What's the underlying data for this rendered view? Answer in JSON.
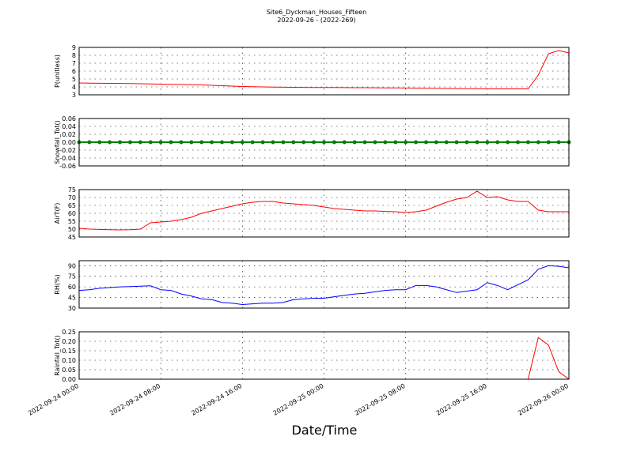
{
  "chart_data": [
    {
      "type": "line",
      "title": "Site6_Dyckman_Houses_Fifteen",
      "subtitle": "2022-09-26 - (2022-269)",
      "ylabel": "P(unitless)",
      "color": "#ff0000",
      "grid": true,
      "x": [
        "2022-09-24 00:00",
        "2022-09-24 01:00",
        "2022-09-24 02:00",
        "2022-09-24 03:00",
        "2022-09-24 04:00",
        "2022-09-24 05:00",
        "2022-09-24 06:00",
        "2022-09-24 07:00",
        "2022-09-24 08:00",
        "2022-09-24 09:00",
        "2022-09-24 10:00",
        "2022-09-24 11:00",
        "2022-09-24 12:00",
        "2022-09-24 13:00",
        "2022-09-24 14:00",
        "2022-09-24 15:00",
        "2022-09-24 16:00",
        "2022-09-24 17:00",
        "2022-09-24 18:00",
        "2022-09-24 19:00",
        "2022-09-24 20:00",
        "2022-09-24 21:00",
        "2022-09-24 22:00",
        "2022-09-24 23:00",
        "2022-09-25 00:00",
        "2022-09-25 01:00",
        "2022-09-25 02:00",
        "2022-09-25 03:00",
        "2022-09-25 04:00",
        "2022-09-25 05:00",
        "2022-09-25 06:00",
        "2022-09-25 07:00",
        "2022-09-25 08:00",
        "2022-09-25 09:00",
        "2022-09-25 10:00",
        "2022-09-25 11:00",
        "2022-09-25 12:00",
        "2022-09-25 13:00",
        "2022-09-25 14:00",
        "2022-09-25 15:00",
        "2022-09-25 16:00",
        "2022-09-25 17:00",
        "2022-09-25 18:00",
        "2022-09-25 19:00",
        "2022-09-25 20:00",
        "2022-09-25 21:00",
        "2022-09-25 22:00",
        "2022-09-25 23:00",
        "2022-09-26 00:00"
      ],
      "values": [
        4.5,
        4.48,
        4.46,
        4.45,
        4.44,
        4.42,
        4.4,
        4.38,
        4.35,
        4.33,
        4.3,
        4.28,
        4.25,
        4.2,
        4.15,
        4.1,
        4.05,
        4.02,
        4.0,
        3.98,
        3.96,
        3.95,
        3.94,
        3.93,
        3.92,
        3.92,
        3.91,
        3.9,
        3.9,
        3.89,
        3.88,
        3.87,
        3.86,
        3.85,
        3.84,
        3.82,
        3.8,
        3.79,
        3.78,
        3.77,
        3.76,
        3.75,
        3.75,
        3.75,
        3.75,
        5.5,
        8.2,
        8.6,
        8.3
      ],
      "xlim": [
        "2022-09-24 00:00",
        "2022-09-26 00:00"
      ],
      "ylim": [
        3,
        9
      ],
      "yticks": [
        3,
        4,
        5,
        6,
        7,
        8,
        9
      ]
    },
    {
      "type": "line",
      "ylabel": "Snowfall_Tot()",
      "color": "#008000",
      "markers": true,
      "grid": true,
      "x": [
        "2022-09-24 00:00",
        "2022-09-24 01:00",
        "2022-09-24 02:00",
        "2022-09-24 03:00",
        "2022-09-24 04:00",
        "2022-09-24 05:00",
        "2022-09-24 06:00",
        "2022-09-24 07:00",
        "2022-09-24 08:00",
        "2022-09-24 09:00",
        "2022-09-24 10:00",
        "2022-09-24 11:00",
        "2022-09-24 12:00",
        "2022-09-24 13:00",
        "2022-09-24 14:00",
        "2022-09-24 15:00",
        "2022-09-24 16:00",
        "2022-09-24 17:00",
        "2022-09-24 18:00",
        "2022-09-24 19:00",
        "2022-09-24 20:00",
        "2022-09-24 21:00",
        "2022-09-24 22:00",
        "2022-09-24 23:00",
        "2022-09-25 00:00",
        "2022-09-25 01:00",
        "2022-09-25 02:00",
        "2022-09-25 03:00",
        "2022-09-25 04:00",
        "2022-09-25 05:00",
        "2022-09-25 06:00",
        "2022-09-25 07:00",
        "2022-09-25 08:00",
        "2022-09-25 09:00",
        "2022-09-25 10:00",
        "2022-09-25 11:00",
        "2022-09-25 12:00",
        "2022-09-25 13:00",
        "2022-09-25 14:00",
        "2022-09-25 15:00",
        "2022-09-25 16:00",
        "2022-09-25 17:00",
        "2022-09-25 18:00",
        "2022-09-25 19:00",
        "2022-09-25 20:00",
        "2022-09-25 21:00",
        "2022-09-25 22:00",
        "2022-09-25 23:00",
        "2022-09-26 00:00"
      ],
      "values": [
        0,
        0,
        0,
        0,
        0,
        0,
        0,
        0,
        0,
        0,
        0,
        0,
        0,
        0,
        0,
        0,
        0,
        0,
        0,
        0,
        0,
        0,
        0,
        0,
        0,
        0,
        0,
        0,
        0,
        0,
        0,
        0,
        0,
        0,
        0,
        0,
        0,
        0,
        0,
        0,
        0,
        0,
        0,
        0,
        0,
        0,
        0,
        0,
        0
      ],
      "xlim": [
        "2022-09-24 00:00",
        "2022-09-26 00:00"
      ],
      "ylim": [
        -0.06,
        0.06
      ],
      "yticks": [
        {
          "value": -0.06,
          "label": "-0.06"
        },
        {
          "value": -0.04,
          "label": "-0.04"
        },
        {
          "value": -0.02,
          "label": "-0.02"
        },
        {
          "value": 0,
          "label": "0.00"
        },
        {
          "value": 0.02,
          "label": "0.02"
        },
        {
          "value": 0.04,
          "label": "0.04"
        },
        {
          "value": 0.06,
          "label": "0.06"
        }
      ]
    },
    {
      "type": "line",
      "ylabel": "AirT(F)",
      "color": "#ff0000",
      "grid": true,
      "x": [
        "2022-09-24 00:00",
        "2022-09-24 01:00",
        "2022-09-24 02:00",
        "2022-09-24 03:00",
        "2022-09-24 04:00",
        "2022-09-24 05:00",
        "2022-09-24 06:00",
        "2022-09-24 07:00",
        "2022-09-24 08:00",
        "2022-09-24 09:00",
        "2022-09-24 10:00",
        "2022-09-24 11:00",
        "2022-09-24 12:00",
        "2022-09-24 13:00",
        "2022-09-24 14:00",
        "2022-09-24 15:00",
        "2022-09-24 16:00",
        "2022-09-24 17:00",
        "2022-09-24 18:00",
        "2022-09-24 19:00",
        "2022-09-24 20:00",
        "2022-09-24 21:00",
        "2022-09-24 22:00",
        "2022-09-24 23:00",
        "2022-09-25 00:00",
        "2022-09-25 01:00",
        "2022-09-25 02:00",
        "2022-09-25 03:00",
        "2022-09-25 04:00",
        "2022-09-25 05:00",
        "2022-09-25 06:00",
        "2022-09-25 07:00",
        "2022-09-25 08:00",
        "2022-09-25 09:00",
        "2022-09-25 10:00",
        "2022-09-25 11:00",
        "2022-09-25 12:00",
        "2022-09-25 13:00",
        "2022-09-25 14:00",
        "2022-09-25 15:00",
        "2022-09-25 16:00",
        "2022-09-25 17:00",
        "2022-09-25 18:00",
        "2022-09-25 19:00",
        "2022-09-25 20:00",
        "2022-09-25 21:00",
        "2022-09-25 22:00",
        "2022-09-25 23:00",
        "2022-09-26 00:00"
      ],
      "values": [
        50.5,
        50,
        49.8,
        49.6,
        49.5,
        49.6,
        50,
        54,
        54.5,
        55,
        56,
        57.5,
        60,
        61.5,
        63,
        64.5,
        66,
        67,
        67.5,
        67.5,
        66.5,
        66,
        65.5,
        65,
        64,
        63,
        62.5,
        62,
        61.5,
        61.5,
        61.2,
        61,
        60.5,
        61,
        62,
        64.5,
        67,
        69,
        70,
        74,
        70,
        70.5,
        68.5,
        67.5,
        67.5,
        62,
        61,
        61,
        61
      ],
      "xlim": [
        "2022-09-24 00:00",
        "2022-09-26 00:00"
      ],
      "ylim": [
        45,
        75
      ],
      "yticks": [
        45,
        50,
        55,
        60,
        65,
        70,
        75
      ]
    },
    {
      "type": "line",
      "ylabel": "RH(%)",
      "color": "#0000ff",
      "grid": true,
      "x": [
        "2022-09-24 00:00",
        "2022-09-24 01:00",
        "2022-09-24 02:00",
        "2022-09-24 03:00",
        "2022-09-24 04:00",
        "2022-09-24 05:00",
        "2022-09-24 06:00",
        "2022-09-24 07:00",
        "2022-09-24 08:00",
        "2022-09-24 09:00",
        "2022-09-24 10:00",
        "2022-09-24 11:00",
        "2022-09-24 12:00",
        "2022-09-24 13:00",
        "2022-09-24 14:00",
        "2022-09-24 15:00",
        "2022-09-24 16:00",
        "2022-09-24 17:00",
        "2022-09-24 18:00",
        "2022-09-24 19:00",
        "2022-09-24 20:00",
        "2022-09-24 21:00",
        "2022-09-24 22:00",
        "2022-09-24 23:00",
        "2022-09-25 00:00",
        "2022-09-25 01:00",
        "2022-09-25 02:00",
        "2022-09-25 03:00",
        "2022-09-25 04:00",
        "2022-09-25 05:00",
        "2022-09-25 06:00",
        "2022-09-25 07:00",
        "2022-09-25 08:00",
        "2022-09-25 09:00",
        "2022-09-25 10:00",
        "2022-09-25 11:00",
        "2022-09-25 12:00",
        "2022-09-25 13:00",
        "2022-09-25 14:00",
        "2022-09-25 15:00",
        "2022-09-25 16:00",
        "2022-09-25 17:00",
        "2022-09-25 18:00",
        "2022-09-25 19:00",
        "2022-09-25 20:00",
        "2022-09-25 21:00",
        "2022-09-25 22:00",
        "2022-09-25 23:00",
        "2022-09-26 00:00"
      ],
      "values": [
        55,
        56,
        58,
        59,
        60,
        60.5,
        61,
        61.5,
        56,
        55,
        50,
        47,
        43,
        42,
        38,
        37,
        35,
        36,
        37,
        37,
        38,
        42,
        43,
        44,
        44,
        46,
        48,
        50,
        51,
        53,
        55,
        56,
        56,
        62,
        62,
        60,
        56,
        52,
        54,
        56,
        66,
        62,
        56,
        63,
        70,
        85,
        90,
        89,
        87
      ],
      "xlim": [
        "2022-09-24 00:00",
        "2022-09-26 00:00"
      ],
      "ylim": [
        30,
        97
      ],
      "yticks": [
        30,
        45,
        60,
        75,
        90
      ]
    },
    {
      "type": "line",
      "ylabel": "Rainfall_Tot()",
      "xlabel": "Date/Time",
      "color": "#ff0000",
      "grid": true,
      "x": [
        "2022-09-24 00:00",
        "2022-09-24 01:00",
        "2022-09-24 02:00",
        "2022-09-24 03:00",
        "2022-09-24 04:00",
        "2022-09-24 05:00",
        "2022-09-24 06:00",
        "2022-09-24 07:00",
        "2022-09-24 08:00",
        "2022-09-24 09:00",
        "2022-09-24 10:00",
        "2022-09-24 11:00",
        "2022-09-24 12:00",
        "2022-09-24 13:00",
        "2022-09-24 14:00",
        "2022-09-24 15:00",
        "2022-09-24 16:00",
        "2022-09-24 17:00",
        "2022-09-24 18:00",
        "2022-09-24 19:00",
        "2022-09-24 20:00",
        "2022-09-24 21:00",
        "2022-09-24 22:00",
        "2022-09-24 23:00",
        "2022-09-25 00:00",
        "2022-09-25 01:00",
        "2022-09-25 02:00",
        "2022-09-25 03:00",
        "2022-09-25 04:00",
        "2022-09-25 05:00",
        "2022-09-25 06:00",
        "2022-09-25 07:00",
        "2022-09-25 08:00",
        "2022-09-25 09:00",
        "2022-09-25 10:00",
        "2022-09-25 11:00",
        "2022-09-25 12:00",
        "2022-09-25 13:00",
        "2022-09-25 14:00",
        "2022-09-25 15:00",
        "2022-09-25 16:00",
        "2022-09-25 17:00",
        "2022-09-25 18:00",
        "2022-09-25 19:00",
        "2022-09-25 20:00",
        "2022-09-25 21:00",
        "2022-09-25 22:00",
        "2022-09-25 23:00",
        "2022-09-26 00:00"
      ],
      "values": [
        0,
        0,
        0,
        0,
        0,
        0,
        0,
        0,
        0,
        0,
        0,
        0,
        0,
        0,
        0,
        0,
        0,
        0,
        0,
        0,
        0,
        0,
        0,
        0,
        0,
        0,
        0,
        0,
        0,
        0,
        0,
        0,
        0,
        0,
        0,
        0,
        0,
        0,
        0,
        0,
        0,
        0,
        0,
        0,
        0,
        0.22,
        0.18,
        0.04,
        0
      ],
      "xlim": [
        "2022-09-24 00:00",
        "2022-09-26 00:00"
      ],
      "xticks": [
        "2022-09-24 00:00",
        "2022-09-24 08:00",
        "2022-09-24 16:00",
        "2022-09-25 00:00",
        "2022-09-25 08:00",
        "2022-09-25 16:00",
        "2022-09-26 00:00"
      ],
      "ylim": [
        0,
        0.25
      ],
      "yticks": [
        {
          "value": 0,
          "label": "0.00"
        },
        {
          "value": 0.05,
          "label": "0.05"
        },
        {
          "value": 0.1,
          "label": "0.10"
        },
        {
          "value": 0.15,
          "label": "0.15"
        },
        {
          "value": 0.2,
          "label": "0.20"
        },
        {
          "value": 0.25,
          "label": "0.25"
        }
      ]
    }
  ]
}
